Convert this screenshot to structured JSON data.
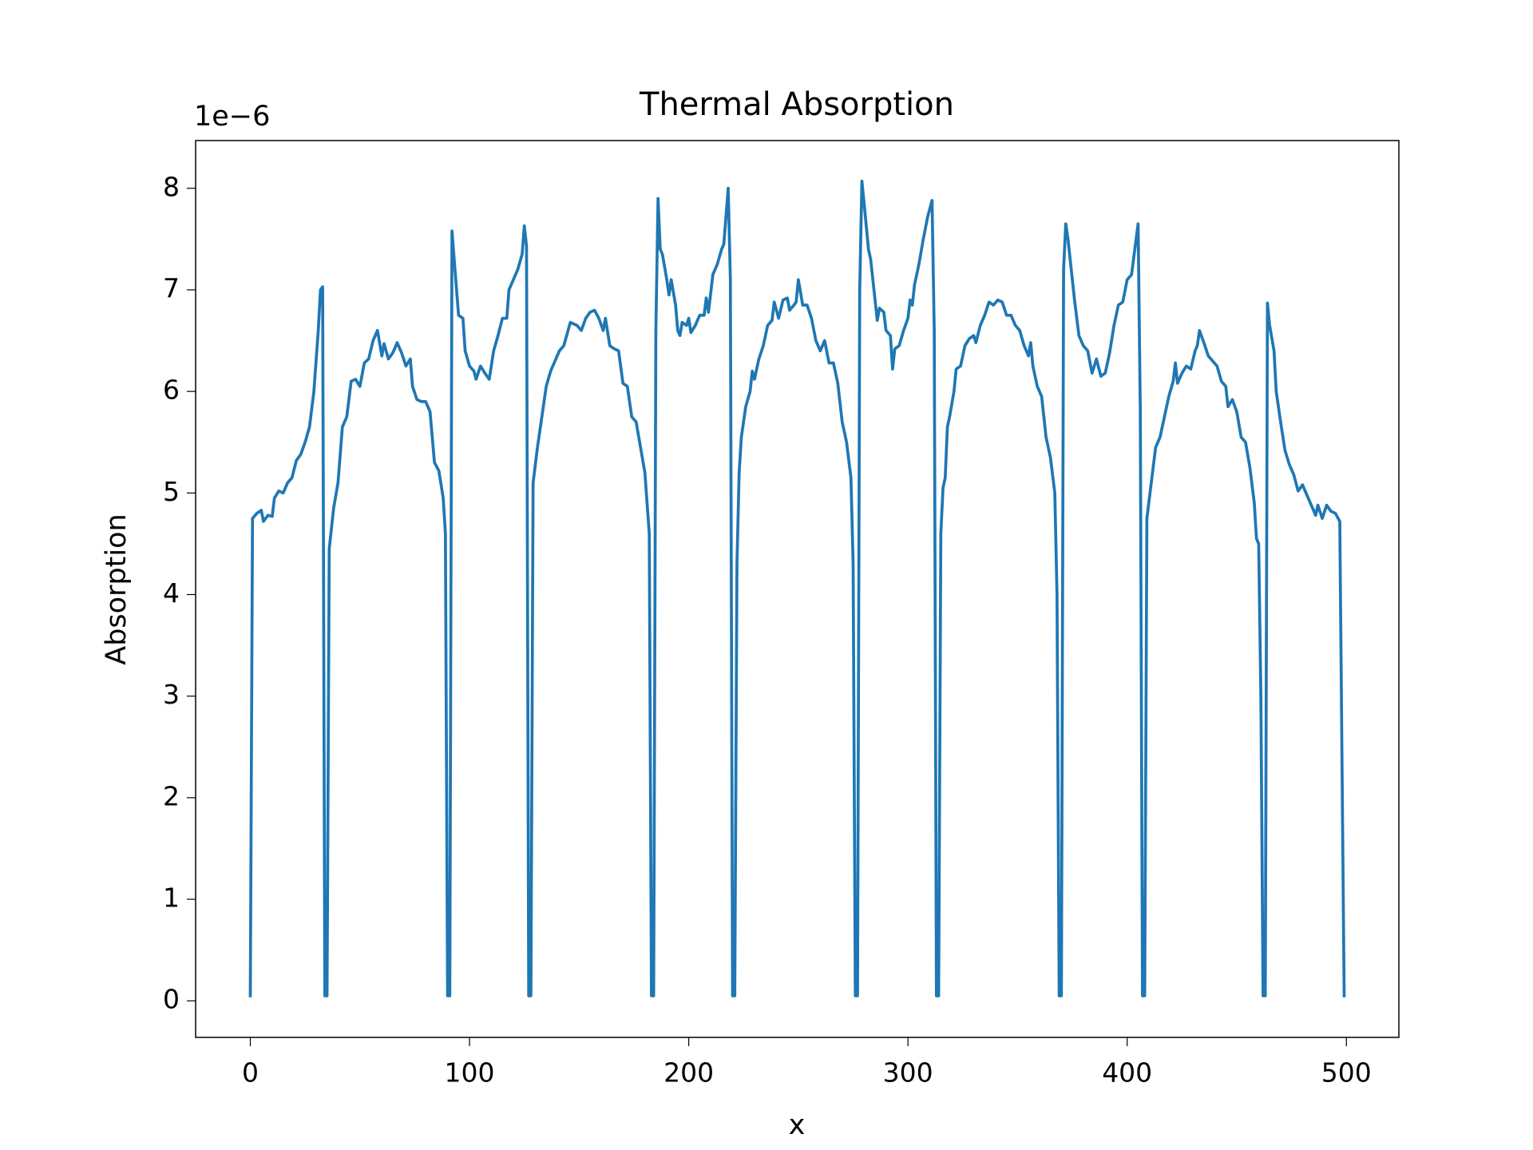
{
  "chart_data": {
    "type": "line",
    "title": "Thermal Absorption",
    "xlabel": "x",
    "ylabel": "Absorption",
    "y_offset_label": "1e−6",
    "color": "#1f77b4",
    "xlim": [
      -24.95,
      523.95
    ],
    "ylim": [
      -0.36,
      8.47
    ],
    "xticks": [
      0,
      100,
      200,
      300,
      400,
      500
    ],
    "yticks": [
      0,
      1,
      2,
      3,
      4,
      5,
      6,
      7,
      8
    ],
    "x": [
      0,
      1,
      3,
      5,
      6,
      8,
      10,
      11,
      13,
      15,
      17,
      19,
      21,
      23,
      25,
      27,
      29,
      31,
      32,
      33,
      34,
      35,
      36,
      38,
      40,
      42,
      44,
      46,
      48,
      50,
      52,
      54,
      56,
      58,
      60,
      61,
      63,
      65,
      67,
      69,
      71,
      73,
      74,
      76,
      78,
      80,
      82,
      84,
      86,
      88,
      89,
      90,
      91,
      92,
      93,
      95,
      97,
      98,
      100,
      102,
      103,
      105,
      107,
      109,
      111,
      113,
      115,
      117,
      118,
      120,
      122,
      124,
      125,
      126,
      127,
      128,
      129,
      131,
      133,
      135,
      137,
      139,
      141,
      143,
      146,
      149,
      151,
      153,
      155,
      157,
      159,
      161,
      162,
      164,
      166,
      168,
      170,
      172,
      174,
      176,
      178,
      180,
      182,
      183,
      184,
      185,
      186,
      187,
      188,
      190,
      191,
      192,
      194,
      195,
      196,
      197,
      199,
      200,
      201,
      203,
      205,
      207,
      208,
      209,
      211,
      213,
      215,
      216,
      218,
      219,
      220,
      221,
      222,
      223,
      224,
      226,
      228,
      229,
      230,
      232,
      234,
      236,
      238,
      239,
      241,
      243,
      245,
      246,
      248,
      249,
      250,
      252,
      254,
      256,
      258,
      260,
      262,
      264,
      266,
      268,
      270,
      272,
      274,
      275,
      276,
      277,
      278,
      279,
      280,
      282,
      283,
      285,
      286,
      287,
      289,
      290,
      292,
      293,
      294,
      296,
      298,
      300,
      301,
      302,
      303,
      305,
      307,
      309,
      311,
      312,
      313,
      314,
      315,
      316,
      317,
      318,
      319,
      321,
      322,
      324,
      326,
      328,
      330,
      331,
      333,
      335,
      337,
      339,
      341,
      343,
      345,
      347,
      349,
      351,
      353,
      355,
      356,
      357,
      359,
      361,
      363,
      365,
      367,
      368,
      369,
      370,
      371,
      372,
      373,
      374,
      376,
      378,
      380,
      382,
      384,
      386,
      388,
      390,
      392,
      394,
      396,
      398,
      400,
      402,
      405,
      406,
      407,
      408,
      409,
      411,
      413,
      415,
      417,
      419,
      421,
      422,
      423,
      425,
      427,
      429,
      431,
      432,
      433,
      435,
      437,
      439,
      441,
      443,
      445,
      446,
      448,
      450,
      452,
      454,
      456,
      458,
      459,
      460,
      461,
      462,
      463,
      464,
      465,
      467,
      468,
      470,
      472,
      474,
      476,
      478,
      480,
      482,
      484,
      486,
      487,
      489,
      491,
      493,
      495,
      497,
      499
    ],
    "values": [
      0.05,
      4.75,
      4.8,
      4.83,
      4.72,
      4.78,
      4.77,
      4.95,
      5.02,
      5.0,
      5.1,
      5.15,
      5.32,
      5.38,
      5.5,
      5.65,
      6.0,
      6.6,
      7.0,
      7.03,
      0.05,
      0.05,
      4.45,
      4.85,
      5.1,
      5.65,
      5.75,
      6.1,
      6.12,
      6.05,
      6.28,
      6.32,
      6.5,
      6.6,
      6.35,
      6.47,
      6.32,
      6.38,
      6.48,
      6.38,
      6.25,
      6.32,
      6.05,
      5.92,
      5.9,
      5.9,
      5.8,
      5.3,
      5.22,
      4.95,
      4.6,
      0.05,
      0.05,
      7.58,
      7.3,
      6.75,
      6.72,
      6.4,
      6.25,
      6.2,
      6.12,
      6.25,
      6.18,
      6.12,
      6.4,
      6.55,
      6.72,
      6.72,
      7.0,
      7.1,
      7.2,
      7.35,
      7.63,
      7.43,
      0.05,
      0.05,
      5.1,
      5.45,
      5.75,
      6.05,
      6.2,
      6.3,
      6.4,
      6.45,
      6.68,
      6.65,
      6.6,
      6.72,
      6.78,
      6.8,
      6.72,
      6.6,
      6.72,
      6.45,
      6.42,
      6.4,
      6.08,
      6.05,
      5.75,
      5.7,
      5.45,
      5.2,
      4.6,
      0.05,
      0.05,
      6.6,
      7.9,
      7.4,
      7.35,
      7.1,
      6.95,
      7.1,
      6.85,
      6.6,
      6.55,
      6.68,
      6.65,
      6.72,
      6.58,
      6.65,
      6.75,
      6.75,
      6.92,
      6.78,
      7.15,
      7.25,
      7.4,
      7.45,
      8.0,
      7.1,
      0.05,
      0.05,
      4.3,
      5.2,
      5.55,
      5.85,
      6.0,
      6.2,
      6.12,
      6.32,
      6.45,
      6.65,
      6.7,
      6.88,
      6.72,
      6.9,
      6.92,
      6.8,
      6.85,
      6.88,
      7.1,
      6.85,
      6.85,
      6.72,
      6.5,
      6.4,
      6.5,
      6.28,
      6.28,
      6.08,
      5.7,
      5.5,
      5.15,
      4.3,
      0.05,
      0.05,
      7.0,
      8.07,
      7.85,
      7.4,
      7.3,
      6.9,
      6.7,
      6.82,
      6.78,
      6.6,
      6.55,
      6.22,
      6.42,
      6.45,
      6.6,
      6.72,
      6.9,
      6.85,
      7.05,
      7.25,
      7.5,
      7.72,
      7.88,
      6.6,
      0.05,
      0.05,
      4.6,
      5.05,
      5.15,
      5.65,
      5.75,
      6.0,
      6.22,
      6.25,
      6.45,
      6.52,
      6.55,
      6.48,
      6.65,
      6.75,
      6.88,
      6.85,
      6.9,
      6.88,
      6.75,
      6.75,
      6.65,
      6.6,
      6.45,
      6.35,
      6.48,
      6.25,
      6.05,
      5.95,
      5.55,
      5.35,
      5.0,
      4.0,
      0.05,
      0.05,
      7.2,
      7.65,
      7.5,
      7.3,
      6.9,
      6.55,
      6.45,
      6.4,
      6.18,
      6.32,
      6.15,
      6.18,
      6.38,
      6.65,
      6.85,
      6.88,
      7.1,
      7.15,
      7.65,
      5.8,
      0.05,
      0.05,
      4.75,
      5.1,
      5.45,
      5.55,
      5.75,
      5.95,
      6.1,
      6.28,
      6.08,
      6.18,
      6.25,
      6.22,
      6.4,
      6.45,
      6.6,
      6.48,
      6.35,
      6.3,
      6.25,
      6.1,
      6.05,
      5.85,
      5.92,
      5.8,
      5.55,
      5.5,
      5.25,
      4.9,
      4.55,
      4.5,
      3.0,
      0.05,
      0.05,
      6.87,
      6.65,
      6.4,
      6.0,
      5.7,
      5.42,
      5.28,
      5.18,
      5.02,
      5.08,
      4.98,
      4.88,
      4.78,
      4.88,
      4.75,
      4.88,
      4.82,
      4.8,
      4.72,
      0.05
    ]
  }
}
